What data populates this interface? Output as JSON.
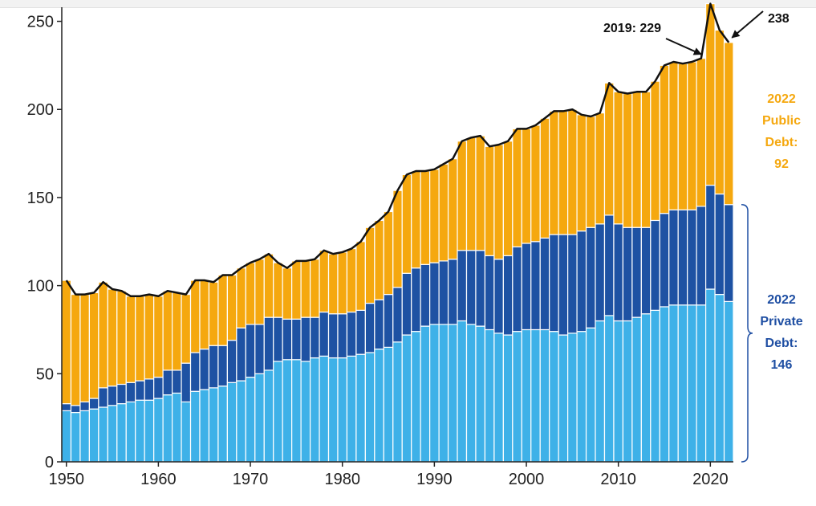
{
  "chart_data": {
    "type": "bar",
    "stacked": true,
    "x": [
      1950,
      1951,
      1952,
      1953,
      1954,
      1955,
      1956,
      1957,
      1958,
      1959,
      1960,
      1961,
      1962,
      1963,
      1964,
      1965,
      1966,
      1967,
      1968,
      1969,
      1970,
      1971,
      1972,
      1973,
      1974,
      1975,
      1976,
      1977,
      1978,
      1979,
      1980,
      1981,
      1982,
      1983,
      1984,
      1985,
      1986,
      1987,
      1988,
      1989,
      1990,
      1991,
      1992,
      1993,
      1994,
      1995,
      1996,
      1997,
      1998,
      1999,
      2000,
      2001,
      2002,
      2003,
      2004,
      2005,
      2006,
      2007,
      2008,
      2009,
      2010,
      2011,
      2012,
      2013,
      2014,
      2015,
      2016,
      2017,
      2018,
      2019,
      2020,
      2021,
      2022
    ],
    "series": [
      {
        "values": [
          29,
          28,
          29,
          30,
          31,
          32,
          33,
          34,
          35,
          35,
          36,
          38,
          39,
          34,
          40,
          41,
          42,
          43,
          45,
          46,
          48,
          50,
          52,
          57,
          58,
          58,
          57,
          59,
          60,
          59,
          59,
          60,
          61,
          62,
          64,
          65,
          68,
          72,
          74,
          77,
          78,
          78,
          78,
          80,
          78,
          77,
          75,
          73,
          72,
          74,
          75,
          75,
          75,
          74,
          72,
          73,
          74,
          76,
          80,
          83,
          80,
          80,
          82,
          84,
          86,
          88,
          89,
          89,
          89,
          89,
          98,
          95,
          91
        ]
      },
      {
        "values": [
          4,
          4,
          5,
          6,
          11,
          11,
          11,
          11,
          11,
          12,
          12,
          14,
          13,
          22,
          22,
          23,
          24,
          23,
          24,
          30,
          30,
          28,
          30,
          25,
          23,
          23,
          25,
          23,
          25,
          25,
          25,
          25,
          25,
          28,
          28,
          30,
          31,
          35,
          36,
          35,
          35,
          36,
          37,
          40,
          42,
          43,
          42,
          42,
          45,
          48,
          49,
          50,
          52,
          55,
          57,
          56,
          57,
          57,
          55,
          57,
          55,
          53,
          51,
          49,
          51,
          53,
          54,
          54,
          54,
          56,
          59,
          57,
          55
        ]
      },
      {
        "values": [
          70,
          63,
          61,
          60,
          60,
          55,
          53,
          49,
          48,
          48,
          46,
          45,
          44,
          39,
          41,
          39,
          36,
          40,
          37,
          34,
          35,
          37,
          36,
          31,
          29,
          33,
          32,
          33,
          35,
          34,
          35,
          36,
          39,
          43,
          45,
          47,
          55,
          56,
          55,
          53,
          53,
          55,
          57,
          62,
          64,
          65,
          62,
          65,
          65,
          67,
          65,
          66,
          68,
          70,
          70,
          71,
          66,
          63,
          63,
          75,
          75,
          76,
          77,
          77,
          79,
          84,
          84,
          83,
          84,
          84,
          103,
          93,
          92
        ]
      }
    ],
    "colors": {
      "private_light": "#3eb1e8",
      "private_dark": "#1e52a3",
      "public": "#f5a80f",
      "total_line": "#111111"
    },
    "xticks": [
      "1950",
      "1960",
      "1970",
      "1980",
      "1990",
      "2000",
      "2010",
      "2020"
    ],
    "yticks": [
      "0",
      "50",
      "100",
      "150",
      "200",
      "250"
    ],
    "ylim": [
      0,
      258
    ],
    "xlim": [
      1949.5,
      2022.5
    ],
    "annotations": {
      "peak_2019": "2019: 229",
      "latest_total": "238",
      "public_lines": [
        "2022",
        "Public",
        "Debt:",
        "92"
      ],
      "private_lines": [
        "2022",
        "Private",
        "Debt:",
        "146"
      ]
    }
  }
}
